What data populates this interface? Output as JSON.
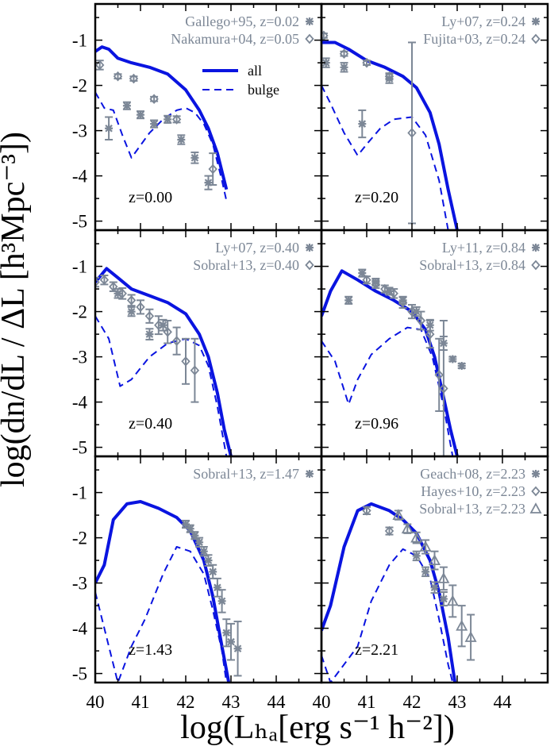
{
  "figure": {
    "ylabel": "log(dn/dL / ΔL [h³Mpc⁻³])",
    "xlabel": "log(Lₕₐ[erg s⁻¹ h⁻²])"
  },
  "colors": {
    "model": "#0a14e0",
    "obs": "#7c8796",
    "frame": "#000000"
  },
  "chart_data": [
    {
      "type": "line",
      "panel": "z=0.00",
      "redshift_label": "z=0.00",
      "xlim": [
        40,
        45
      ],
      "ylim": [
        -5.2,
        -0.2
      ],
      "xticks": [
        "40",
        "41",
        "42",
        "43",
        "44"
      ],
      "yticks": [
        "-1",
        "-2",
        "-3",
        "-4",
        "-5"
      ],
      "series": [
        {
          "name": "all",
          "style": "solid",
          "x": [
            40.0,
            40.15,
            40.3,
            40.5,
            40.8,
            41.2,
            41.6,
            42.0,
            42.3,
            42.5,
            42.7,
            42.9
          ],
          "y": [
            -1.25,
            -1.15,
            -1.2,
            -1.4,
            -1.5,
            -1.6,
            -1.75,
            -2.1,
            -2.55,
            -2.95,
            -3.5,
            -4.3
          ]
        },
        {
          "name": "bulge",
          "style": "dashed",
          "x": [
            40.0,
            40.2,
            40.4,
            40.6,
            40.8,
            41.2,
            41.5,
            41.8,
            42.0,
            42.2,
            42.4,
            42.6,
            42.8,
            42.9
          ],
          "y": [
            -2.15,
            -2.5,
            -2.55,
            -3.1,
            -3.6,
            -3.05,
            -2.75,
            -2.55,
            -2.5,
            -2.6,
            -2.85,
            -3.3,
            -4.1,
            -4.55
          ]
        }
      ],
      "observations": [
        {
          "label": "Gallego+95, z=0.02",
          "marker": "asterisk",
          "x": [
            40.3,
            40.7,
            41.0,
            41.3,
            41.6,
            41.9,
            42.2,
            42.5
          ],
          "y": [
            -2.95,
            -2.45,
            -2.65,
            -2.85,
            -2.75,
            -3.2,
            -3.6,
            -4.15
          ],
          "err": [
            0.25,
            0.08,
            0.08,
            0.08,
            0.08,
            0.1,
            0.12,
            0.15
          ]
        },
        {
          "label": "Nakamura+04, z=0.05",
          "marker": "diamond",
          "x": [
            40.1,
            40.5,
            40.85,
            41.3,
            41.8,
            42.6
          ],
          "y": [
            -1.55,
            -1.8,
            -1.85,
            -2.3,
            -2.75,
            -3.85
          ],
          "err": [
            0.1,
            0.05,
            0.05,
            0.05,
            0.07,
            0.35
          ]
        }
      ]
    },
    {
      "type": "line",
      "panel": "z=0.20",
      "redshift_label": "z=0.20",
      "xlim": [
        40,
        45
      ],
      "ylim": [
        -5.2,
        -0.2
      ],
      "xticks": [
        "40",
        "41",
        "42",
        "43",
        "44"
      ],
      "yticks": [
        "-1",
        "-2",
        "-3",
        "-4",
        "-5"
      ],
      "series": [
        {
          "name": "all",
          "style": "solid",
          "x": [
            40.0,
            40.3,
            40.6,
            41.0,
            41.4,
            41.8,
            42.1,
            42.4,
            42.6,
            42.8,
            43.0
          ],
          "y": [
            -1.05,
            -1.05,
            -1.2,
            -1.45,
            -1.6,
            -1.8,
            -2.05,
            -2.6,
            -3.3,
            -4.3,
            -5.2
          ]
        },
        {
          "name": "bulge",
          "style": "dashed",
          "x": [
            40.0,
            40.2,
            40.5,
            40.8,
            41.0,
            41.3,
            41.6,
            42.0,
            42.3,
            42.6,
            42.8
          ],
          "y": [
            -2.0,
            -2.4,
            -3.05,
            -3.55,
            -3.3,
            -2.95,
            -2.75,
            -2.7,
            -3.1,
            -4.1,
            -5.2
          ]
        }
      ],
      "observations": [
        {
          "label": "Ly+07, z=0.24",
          "marker": "asterisk",
          "x": [
            40.1,
            40.5,
            40.9,
            41.5
          ],
          "y": [
            -1.5,
            -1.6,
            -2.85,
            -1.85
          ],
          "err": [
            0.1,
            0.1,
            0.3,
            0.1
          ]
        },
        {
          "label": "Fujita+03, z=0.24",
          "marker": "diamond",
          "x": [
            40.05,
            40.5,
            41.0,
            41.5,
            42.0
          ],
          "y": [
            -0.9,
            -1.3,
            -1.5,
            -1.8,
            -3.05
          ],
          "err": [
            0.05,
            0.05,
            0.05,
            0.07,
            2.0
          ]
        }
      ]
    },
    {
      "type": "line",
      "panel": "z=0.40",
      "redshift_label": "z=0.40",
      "xlim": [
        40,
        45
      ],
      "ylim": [
        -5.2,
        -0.2
      ],
      "xticks": [
        "40",
        "41",
        "42",
        "43",
        "44"
      ],
      "yticks": [
        "-1",
        "-2",
        "-3",
        "-4",
        "-5"
      ],
      "series": [
        {
          "name": "all",
          "style": "solid",
          "x": [
            40.0,
            40.25,
            40.5,
            40.8,
            41.2,
            41.6,
            42.0,
            42.3,
            42.5,
            42.7,
            42.85,
            43.0
          ],
          "y": [
            -1.35,
            -1.05,
            -1.25,
            -1.5,
            -1.65,
            -1.8,
            -2.05,
            -2.5,
            -3.0,
            -3.8,
            -4.6,
            -5.2
          ]
        },
        {
          "name": "bulge",
          "style": "dashed",
          "x": [
            40.0,
            40.3,
            40.55,
            40.8,
            41.2,
            41.6,
            42.0,
            42.3,
            42.5,
            42.7,
            42.9
          ],
          "y": [
            -2.1,
            -2.6,
            -3.65,
            -3.5,
            -3.0,
            -2.7,
            -2.6,
            -2.75,
            -3.2,
            -4.1,
            -5.2
          ]
        }
      ],
      "observations": [
        {
          "label": "Ly+07, z=0.40",
          "marker": "asterisk",
          "x": [
            40.5,
            40.8,
            41.2,
            41.5
          ],
          "y": [
            -1.6,
            -2.0,
            -2.5,
            -2.3
          ],
          "err": [
            0.1,
            0.1,
            0.12,
            0.12
          ]
        },
        {
          "label": "Sobral+13, z=0.40",
          "marker": "diamond",
          "x": [
            40.0,
            40.2,
            40.4,
            40.6,
            40.8,
            41.0,
            41.2,
            41.4,
            41.6,
            41.8,
            42.0,
            42.2
          ],
          "y": [
            -1.35,
            -1.3,
            -1.45,
            -1.6,
            -1.75,
            -1.9,
            -2.1,
            -2.3,
            -2.45,
            -2.65,
            -3.1,
            -3.3
          ],
          "err": [
            0.1,
            0.1,
            0.1,
            0.12,
            0.12,
            0.15,
            0.15,
            0.2,
            0.25,
            0.3,
            0.5,
            0.7
          ]
        }
      ]
    },
    {
      "type": "line",
      "panel": "z=0.96",
      "redshift_label": "z=0.96",
      "xlim": [
        40,
        45
      ],
      "ylim": [
        -5.2,
        -0.2
      ],
      "xticks": [
        "40",
        "41",
        "42",
        "43",
        "44"
      ],
      "yticks": [
        "-1",
        "-2",
        "-3",
        "-4",
        "-5"
      ],
      "series": [
        {
          "name": "all",
          "style": "solid",
          "x": [
            40.0,
            40.2,
            40.45,
            40.8,
            41.2,
            41.6,
            42.0,
            42.3,
            42.5,
            42.7,
            42.85,
            43.0
          ],
          "y": [
            -2.1,
            -1.55,
            -1.1,
            -1.3,
            -1.55,
            -1.75,
            -2.0,
            -2.4,
            -3.0,
            -3.9,
            -4.6,
            -5.2
          ]
        },
        {
          "name": "bulge",
          "style": "dashed",
          "x": [
            40.0,
            40.3,
            40.6,
            40.8,
            41.1,
            41.5,
            41.9,
            42.2,
            42.45,
            42.7,
            42.9
          ],
          "y": [
            -2.65,
            -3.1,
            -4.05,
            -3.5,
            -2.95,
            -2.6,
            -2.35,
            -2.4,
            -3.0,
            -4.1,
            -5.2
          ]
        }
      ],
      "observations": [
        {
          "label": "Ly+11, z=0.84",
          "marker": "asterisk",
          "x": [
            40.6,
            40.9,
            41.2,
            41.5,
            41.8,
            42.1,
            42.4,
            42.7,
            42.9,
            43.1
          ],
          "y": [
            -1.75,
            -1.15,
            -1.35,
            -1.55,
            -1.75,
            -2.0,
            -2.3,
            -2.7,
            -3.05,
            -3.2
          ],
          "err": [
            0.08,
            0.08,
            0.08,
            0.08,
            0.08,
            0.1,
            0.12,
            0.15,
            0.05,
            0.05
          ]
        },
        {
          "label": "Sobral+13, z=0.84",
          "marker": "diamond",
          "x": [
            41.0,
            41.2,
            41.4,
            41.6,
            41.8,
            42.0,
            42.2,
            42.4,
            42.6,
            42.7
          ],
          "y": [
            -1.3,
            -1.4,
            -1.5,
            -1.6,
            -1.8,
            -2.0,
            -2.2,
            -2.5,
            -3.4,
            -3.7
          ],
          "err": [
            0.08,
            0.08,
            0.08,
            0.1,
            0.12,
            0.15,
            0.2,
            0.3,
            0.8,
            1.5
          ]
        }
      ]
    },
    {
      "type": "line",
      "panel": "z=1.43",
      "redshift_label": "z=1.43",
      "xlim": [
        40,
        45
      ],
      "ylim": [
        -5.2,
        -0.2
      ],
      "xticks": [
        "40",
        "41",
        "42",
        "43",
        "44"
      ],
      "yticks": [
        "-1",
        "-2",
        "-3",
        "-4",
        "-5"
      ],
      "series": [
        {
          "name": "all",
          "style": "solid",
          "x": [
            40.0,
            40.2,
            40.4,
            40.7,
            41.0,
            41.4,
            41.8,
            42.1,
            42.4,
            42.6,
            42.8,
            42.95
          ],
          "y": [
            -3.0,
            -2.6,
            -1.6,
            -1.25,
            -1.2,
            -1.35,
            -1.55,
            -1.85,
            -2.5,
            -3.3,
            -4.4,
            -5.2
          ]
        },
        {
          "name": "bulge",
          "style": "dashed",
          "x": [
            40.0,
            40.3,
            40.5,
            40.8,
            41.1,
            41.5,
            41.8,
            42.1,
            42.4,
            42.6,
            42.8,
            42.9
          ],
          "y": [
            -3.2,
            -4.4,
            -5.2,
            -4.4,
            -3.8,
            -2.8,
            -2.2,
            -2.3,
            -2.8,
            -3.6,
            -4.5,
            -5.2
          ]
        }
      ],
      "observations": [
        {
          "label": "Sobral+13, z=1.47",
          "marker": "asterisk",
          "x": [
            42.0,
            42.1,
            42.2,
            42.3,
            42.4,
            42.5,
            42.6,
            42.7,
            42.8,
            42.9,
            43.0,
            43.15
          ],
          "y": [
            -1.7,
            -1.8,
            -1.95,
            -2.1,
            -2.3,
            -2.5,
            -2.75,
            -3.1,
            -3.4,
            -4.1,
            -4.3,
            -4.45
          ],
          "err": [
            0.08,
            0.08,
            0.08,
            0.1,
            0.1,
            0.12,
            0.15,
            0.2,
            0.25,
            0.3,
            0.4,
            0.6
          ]
        }
      ]
    },
    {
      "type": "line",
      "panel": "z=2.21",
      "redshift_label": "z=2.21",
      "xlim": [
        40,
        45
      ],
      "ylim": [
        -5.2,
        -0.2
      ],
      "xticks": [
        "40",
        "41",
        "42",
        "43",
        "44"
      ],
      "yticks": [
        "-1",
        "-2",
        "-3",
        "-4",
        "-5"
      ],
      "series": [
        {
          "name": "all",
          "style": "solid",
          "x": [
            40.0,
            40.2,
            40.5,
            40.8,
            41.1,
            41.5,
            41.8,
            42.1,
            42.4,
            42.6,
            42.8,
            42.95
          ],
          "y": [
            -4.05,
            -3.5,
            -2.2,
            -1.4,
            -1.25,
            -1.4,
            -1.6,
            -1.9,
            -2.5,
            -3.2,
            -4.2,
            -5.2
          ]
        },
        {
          "name": "bulge",
          "style": "dashed",
          "x": [
            40.0,
            40.2,
            40.5,
            40.8,
            41.1,
            41.5,
            41.8,
            42.1,
            42.4,
            42.6,
            42.8,
            42.9
          ],
          "y": [
            -4.6,
            -5.2,
            -4.8,
            -4.4,
            -3.4,
            -2.6,
            -2.25,
            -2.4,
            -2.9,
            -3.8,
            -4.8,
            -5.2
          ]
        }
      ],
      "observations": [
        {
          "label": "Geach+08, z=2.23",
          "marker": "asterisk",
          "x": [
            42.1,
            42.3,
            42.5,
            42.7
          ],
          "y": [
            -2.4,
            -2.75,
            -3.1,
            -3.35
          ],
          "err": [
            0.1,
            0.1,
            0.12,
            0.15
          ]
        },
        {
          "label": "Hayes+10, z=2.23",
          "marker": "diamond",
          "x": [
            41.0,
            41.5
          ],
          "y": [
            -1.4,
            -1.85
          ],
          "err": [
            0.08,
            0.08
          ]
        },
        {
          "label": "Sobral+13, z=2.23",
          "marker": "triangle",
          "x": [
            41.7,
            41.9,
            42.1,
            42.3,
            42.5,
            42.7,
            42.9,
            43.1,
            43.3
          ],
          "y": [
            -1.5,
            -1.8,
            -2.0,
            -2.2,
            -2.5,
            -2.9,
            -3.4,
            -3.95,
            -4.2
          ],
          "err": [
            0.1,
            0.1,
            0.12,
            0.15,
            0.2,
            0.25,
            0.35,
            0.45,
            0.5
          ]
        }
      ]
    }
  ]
}
